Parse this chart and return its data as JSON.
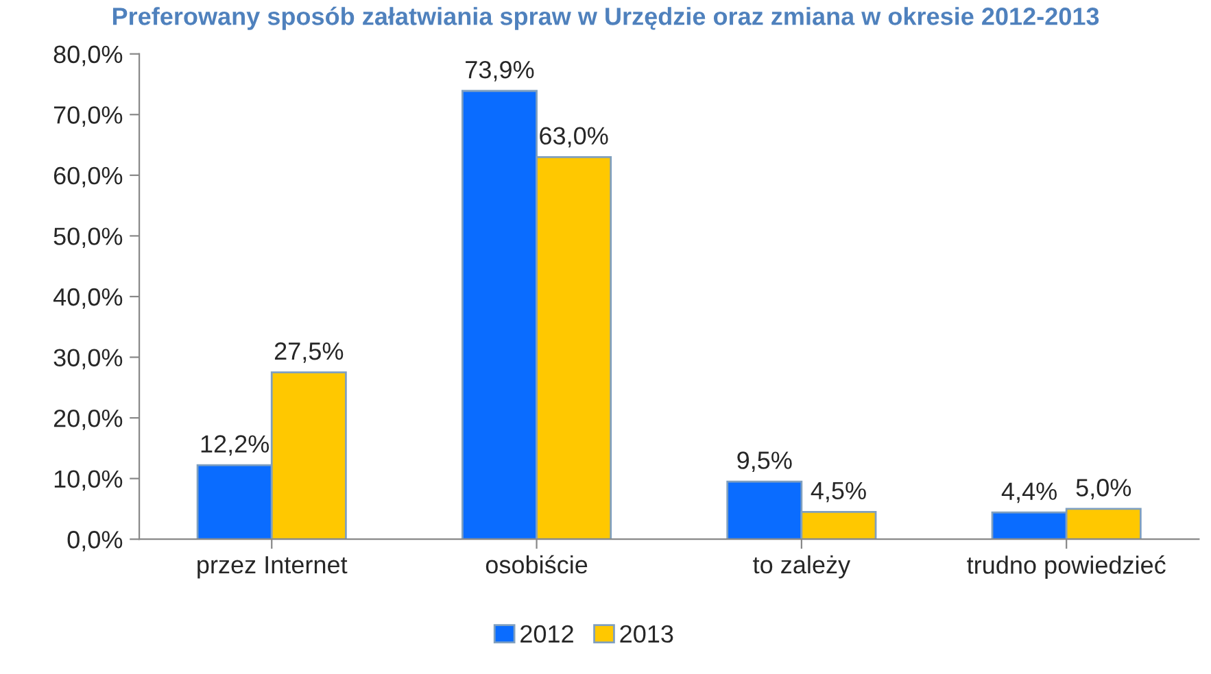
{
  "chart_data": {
    "type": "bar",
    "title": "Preferowany sposób załatwiania spraw w Urzędzie oraz zmiana w okresie 2012-2013",
    "categories": [
      "przez Internet",
      "osobiście",
      "to zależy",
      "trudno powiedzieć"
    ],
    "series": [
      {
        "name": "2012",
        "color": "#0a6cff",
        "values": [
          12.2,
          73.9,
          9.5,
          4.4
        ],
        "value_labels": [
          "12,2%",
          "73,9%",
          "9,5%",
          "4,4%"
        ]
      },
      {
        "name": "2013",
        "color": "#ffc800",
        "values": [
          27.5,
          63.0,
          4.5,
          5.0
        ],
        "value_labels": [
          "27,5%",
          "63,0%",
          "4,5%",
          "5,0%"
        ]
      }
    ],
    "ylim": [
      0,
      80
    ],
    "yticks": [
      {
        "value": 0,
        "label": "0,0%"
      },
      {
        "value": 10,
        "label": "10,0%"
      },
      {
        "value": 20,
        "label": "20,0%"
      },
      {
        "value": 30,
        "label": "30,0%"
      },
      {
        "value": 40,
        "label": "40,0%"
      },
      {
        "value": 50,
        "label": "50,0%"
      },
      {
        "value": 60,
        "label": "60,0%"
      },
      {
        "value": 70,
        "label": "70,0%"
      },
      {
        "value": 80,
        "label": "80,0%"
      }
    ],
    "grid": false,
    "legend": "bottom"
  }
}
